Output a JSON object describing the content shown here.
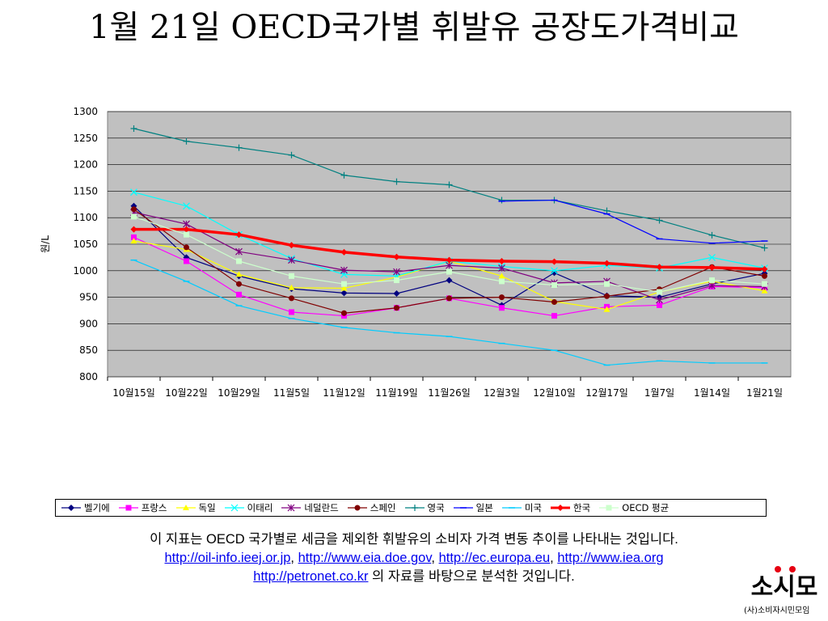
{
  "title": "1월 21일 OECD국가별 휘발유 공장도가격비교",
  "chart_data": {
    "type": "line",
    "title": "",
    "xlabel": "",
    "ylabel": "원/L",
    "ylim": [
      800,
      1300
    ],
    "yticks": [
      800,
      850,
      900,
      950,
      1000,
      1050,
      1100,
      1150,
      1200,
      1250,
      1300
    ],
    "grid": true,
    "legend_position": "bottom",
    "categories": [
      "10월15일",
      "10월22일",
      "10월29일",
      "11월5일",
      "11월12일",
      "11월19일",
      "11월26일",
      "12월3일",
      "12월10일",
      "12월17일",
      "1월7일",
      "1월14일",
      "1월21일"
    ],
    "series": [
      {
        "name": "벨기에",
        "color": "#000080",
        "marker": "diamond",
        "width": 1.2,
        "values": [
          1122,
          1025,
          990,
          966,
          958,
          957,
          982,
          935,
          996,
          953,
          950,
          975,
          995
        ]
      },
      {
        "name": "프랑스",
        "color": "#ff00ff",
        "marker": "square",
        "width": 1.2,
        "values": [
          1063,
          1018,
          955,
          922,
          915,
          930,
          948,
          930,
          915,
          932,
          935,
          970,
          968
        ]
      },
      {
        "name": "독일",
        "color": "#ffff00",
        "marker": "triangle",
        "width": 1.2,
        "values": [
          1056,
          1040,
          993,
          968,
          967,
          988,
          1018,
          990,
          942,
          927,
          960,
          980,
          962
        ]
      },
      {
        "name": "이태리",
        "color": "#00ffff",
        "marker": "x",
        "width": 1.2,
        "values": [
          1148,
          1122,
          1068,
          1023,
          993,
          990,
          1018,
          1008,
          1000,
          1010,
          1005,
          1025,
          1005
        ]
      },
      {
        "name": "네덜란드",
        "color": "#800080",
        "marker": "star",
        "width": 1.2,
        "values": [
          1110,
          1088,
          1036,
          1020,
          1001,
          998,
          1010,
          1005,
          977,
          980,
          945,
          972,
          970
        ]
      },
      {
        "name": "스페인",
        "color": "#800000",
        "marker": "circle",
        "width": 1.2,
        "values": [
          1116,
          1044,
          975,
          948,
          920,
          930,
          948,
          950,
          941,
          952,
          965,
          1007,
          990
        ]
      },
      {
        "name": "영국",
        "color": "#008080",
        "marker": "plus",
        "width": 1.2,
        "values": [
          1268,
          1244,
          1232,
          1218,
          1180,
          1168,
          1162,
          1133,
          1133,
          1113,
          1095,
          1067,
          1043
        ]
      },
      {
        "name": "일본",
        "color": "#0000ff",
        "marker": "dash",
        "width": 1.2,
        "values": [
          null,
          null,
          null,
          null,
          null,
          null,
          null,
          1131,
          1133,
          1107,
          1060,
          1052,
          1056
        ]
      },
      {
        "name": "미국",
        "color": "#00ccff",
        "marker": "dash",
        "width": 1.2,
        "values": [
          1020,
          980,
          934,
          910,
          893,
          883,
          876,
          863,
          850,
          822,
          830,
          826,
          826
        ]
      },
      {
        "name": "한국",
        "color": "#ff0000",
        "marker": "diamond",
        "width": 3.5,
        "values": [
          1078,
          1078,
          1068,
          1048,
          1035,
          1026,
          1020,
          1018,
          1017,
          1014,
          1007,
          1006,
          1003
        ]
      },
      {
        "name": "OECD 평균",
        "color": "#ccffcc",
        "marker": "square",
        "width": 1.2,
        "values": [
          1102,
          1068,
          1018,
          990,
          975,
          982,
          998,
          980,
          973,
          975,
          960,
          982,
          975
        ]
      }
    ]
  },
  "footer": {
    "line1": "이 지표는 OECD 국가별로 세금을 제외한 휘발유의 소비자 가격 변동 추이를 나타내는 것입니다.",
    "link1": "http://oil-info.ieej.or.jp",
    "sep": ", ",
    "link2": "http://www.eia.doe.gov",
    "link3": "http://ec.europa.eu",
    "link4": "http://www.iea.org",
    "link5": "http://petronet.co.kr",
    "line3_suffix": " 의 자료를 바탕으로 분석한 것입니다."
  },
  "logo": {
    "text": "소시모",
    "sub": "(사)소비자시민모임"
  }
}
